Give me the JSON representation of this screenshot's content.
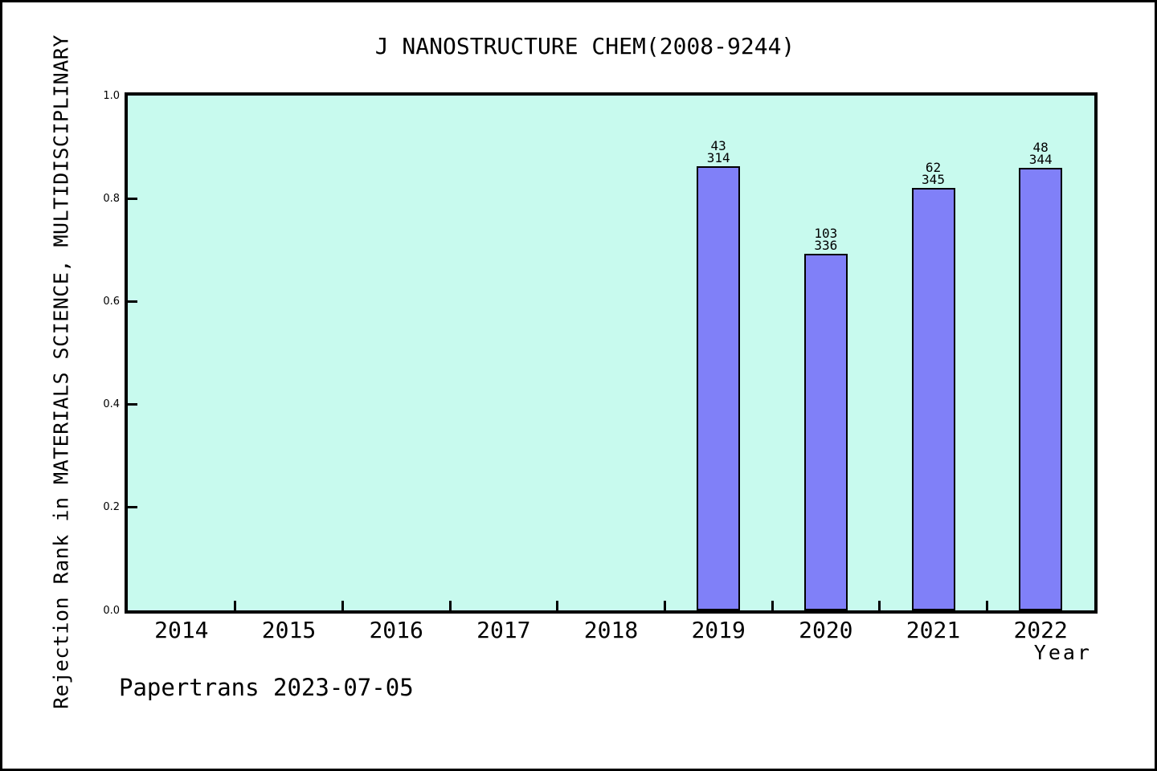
{
  "footer": "Papertrans 2023-07-05",
  "chart_data": {
    "type": "bar",
    "title": "J NANOSTRUCTURE CHEM(2008-9244)",
    "xlabel": "Year",
    "ylabel": "Rejection Rank in MATERIALS SCIENCE, MULTIDISCIPLINARY",
    "categories": [
      "2014",
      "2015",
      "2016",
      "2017",
      "2018",
      "2019",
      "2020",
      "2021",
      "2022"
    ],
    "values": [
      null,
      null,
      null,
      null,
      null,
      0.863,
      0.693,
      0.82,
      0.86
    ],
    "bar_labels": [
      null,
      null,
      null,
      null,
      null,
      [
        "43",
        "314"
      ],
      [
        "103",
        "336"
      ],
      [
        "62",
        "345"
      ],
      [
        "48",
        "344"
      ]
    ],
    "ylim": [
      0.0,
      1.0
    ],
    "yticks": [
      "0.0",
      "0.2",
      "0.4",
      "0.6",
      "0.8",
      "1.0"
    ],
    "grid": false,
    "legend": null,
    "colors": {
      "bar_fill": "#8080f8",
      "bar_edge": "#000000",
      "plot_bg": "#c8faee",
      "frame": "#000000",
      "text": "#000000"
    }
  }
}
